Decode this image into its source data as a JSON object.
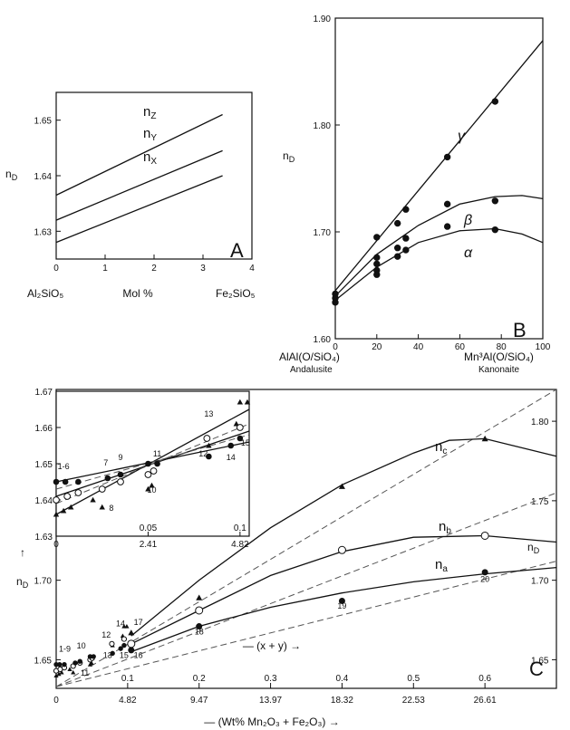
{
  "chart_data": [
    {
      "id": "A",
      "type": "line",
      "panel_label": "A",
      "ylabel": "n",
      "ylabel_sub": "D",
      "xlabel": "Mol %",
      "xlabel_left": "Al₂SiO₅",
      "xlabel_right": "Fe₂SiO₅",
      "xlim": [
        0,
        4
      ],
      "ylim": [
        1.625,
        1.655
      ],
      "xticks": [
        0,
        1,
        2,
        3,
        4
      ],
      "yticks": [
        1.63,
        1.64,
        1.65
      ],
      "ytick_labels": [
        "1.63",
        "1.64",
        "1.65"
      ],
      "series": [
        {
          "name": "nZ",
          "label": "n",
          "sub": "Z",
          "x": [
            0,
            3.4
          ],
          "y": [
            1.6365,
            1.651
          ]
        },
        {
          "name": "nY",
          "label": "n",
          "sub": "Y",
          "x": [
            0,
            3.4
          ],
          "y": [
            1.632,
            1.6445
          ]
        },
        {
          "name": "nX",
          "label": "n",
          "sub": "X",
          "x": [
            0,
            3.4
          ],
          "y": [
            1.628,
            1.64
          ]
        }
      ]
    },
    {
      "id": "B",
      "type": "line",
      "panel_label": "B",
      "ylabel": "n",
      "ylabel_sub": "D",
      "xlabel_left": "AlAl(O/SiO₄)",
      "xlabel_left_sub": "Andalusite",
      "xlabel_right": "Mn³Al(O/SiO₄)",
      "xlabel_right_sub": "Kanonaite",
      "xlim": [
        0,
        100
      ],
      "ylim": [
        1.6,
        1.9
      ],
      "xticks": [
        0,
        20,
        40,
        60,
        80,
        100
      ],
      "yticks": [
        1.6,
        1.7,
        1.8,
        1.9
      ],
      "ytick_labels": [
        "1.60",
        "1.70",
        "1.80",
        "1.90"
      ],
      "series": [
        {
          "name": "γ",
          "x": [
            0,
            100
          ],
          "y": [
            1.645,
            1.879
          ],
          "points": [
            [
              0,
              1.642
            ],
            [
              20,
              1.695
            ],
            [
              30,
              1.708
            ],
            [
              34,
              1.721
            ],
            [
              54,
              1.77
            ],
            [
              77,
              1.822
            ]
          ]
        },
        {
          "name": "β",
          "x": [
            0,
            20,
            40,
            60,
            77,
            90,
            100
          ],
          "y": [
            1.64,
            1.679,
            1.706,
            1.726,
            1.733,
            1.734,
            1.731
          ],
          "points": [
            [
              0,
              1.638
            ],
            [
              20,
              1.676
            ],
            [
              20,
              1.67
            ],
            [
              30,
              1.685
            ],
            [
              34,
              1.694
            ],
            [
              54,
              1.726
            ],
            [
              77,
              1.729
            ]
          ]
        },
        {
          "name": "α",
          "x": [
            0,
            20,
            40,
            60,
            77,
            90,
            100
          ],
          "y": [
            1.636,
            1.667,
            1.69,
            1.701,
            1.703,
            1.698,
            1.69
          ],
          "points": [
            [
              0,
              1.634
            ],
            [
              20,
              1.664
            ],
            [
              20,
              1.66
            ],
            [
              30,
              1.677
            ],
            [
              34,
              1.683
            ],
            [
              54,
              1.705
            ],
            [
              77,
              1.702
            ]
          ]
        }
      ]
    },
    {
      "id": "C",
      "type": "scatter",
      "panel_label": "C",
      "ylabel": "n",
      "ylabel_sub": "D",
      "xlabel": "(Wt% Mn₂O₃ + Fe₂O₃)",
      "xlabel_top": "(x + y)",
      "xlim": [
        0,
        0.7
      ],
      "ylim": [
        1.632,
        1.82
      ],
      "xticks": [
        0.1,
        0.2,
        0.3,
        0.4,
        0.5,
        0.6
      ],
      "xtick_labels": [
        "0.1",
        "0.2",
        "0.3",
        "0.4",
        "0.5",
        "0.6"
      ],
      "xticks_wt": [
        0,
        0.1,
        0.2,
        0.3,
        0.4,
        0.5,
        0.6
      ],
      "xtick_labels_wt": [
        "0",
        "4.82",
        "9.47",
        "13.97",
        "18.32",
        "22.53",
        "26.61"
      ],
      "yticks_left": [
        1.65,
        1.7
      ],
      "ytick_labels_left": [
        "1.65",
        "1.70"
      ],
      "yticks_right": [
        1.65,
        1.7,
        1.75,
        1.8
      ],
      "ytick_labels_right": [
        "1.65",
        "1.70",
        "1.75",
        "1.80"
      ],
      "series": [
        {
          "name": "nc",
          "label": "n",
          "sub": "c",
          "marker": "triangle",
          "curve_x": [
            0.105,
            0.2,
            0.3,
            0.4,
            0.5,
            0.55,
            0.6,
            0.7
          ],
          "curve_y": [
            1.665,
            1.7,
            1.733,
            1.76,
            1.78,
            1.788,
            1.789,
            1.778
          ],
          "points": [
            [
              0.105,
              1.667
            ],
            [
              0.2,
              1.689
            ],
            [
              0.4,
              1.759
            ],
            [
              0.6,
              1.789
            ]
          ]
        },
        {
          "name": "nb",
          "label": "n",
          "sub": "b",
          "marker": "circle",
          "curve_x": [
            0.105,
            0.2,
            0.3,
            0.4,
            0.5,
            0.6,
            0.7
          ],
          "curve_y": [
            1.66,
            1.681,
            1.703,
            1.718,
            1.727,
            1.728,
            1.724
          ],
          "points": [
            [
              0.105,
              1.66
            ],
            [
              0.2,
              1.681
            ],
            [
              0.4,
              1.719
            ],
            [
              0.6,
              1.728
            ]
          ]
        },
        {
          "name": "na",
          "label": "n",
          "sub": "a",
          "marker": "dot",
          "curve_x": [
            0.105,
            0.2,
            0.3,
            0.4,
            0.5,
            0.6,
            0.7
          ],
          "curve_y": [
            1.655,
            1.671,
            1.683,
            1.692,
            1.699,
            1.704,
            1.708
          ],
          "points": [
            [
              0.105,
              1.656
            ],
            [
              0.2,
              1.671
            ],
            [
              0.4,
              1.687
            ],
            [
              0.6,
              1.705
            ]
          ]
        }
      ],
      "dashed_lines": [
        {
          "x": [
            0,
            0.7
          ],
          "y": [
            1.633,
            1.82
          ]
        },
        {
          "x": [
            0,
            0.7
          ],
          "y": [
            1.633,
            1.755
          ]
        },
        {
          "x": [
            0,
            0.7
          ],
          "y": [
            1.633,
            1.712
          ]
        }
      ],
      "point_labels": [
        {
          "text": "20",
          "x": 0.6,
          "y": 1.699
        },
        {
          "text": "19",
          "x": 0.4,
          "y": 1.682
        },
        {
          "text": "18",
          "x": 0.2,
          "y": 1.666
        },
        {
          "text": "17",
          "x": 0.115,
          "y": 1.672
        },
        {
          "text": "14",
          "x": 0.09,
          "y": 1.671
        },
        {
          "text": "12",
          "x": 0.07,
          "y": 1.664
        },
        {
          "text": "13",
          "x": 0.072,
          "y": 1.651
        },
        {
          "text": "15",
          "x": 0.095,
          "y": 1.651
        },
        {
          "text": "16",
          "x": 0.115,
          "y": 1.651
        },
        {
          "text": "10",
          "x": 0.035,
          "y": 1.657
        },
        {
          "text": "1-9",
          "x": 0.012,
          "y": 1.655
        },
        {
          "text": "11",
          "x": 0.04,
          "y": 1.64
        }
      ],
      "inset": {
        "xlim": [
          0,
          0.105
        ],
        "ylim": [
          1.63,
          1.67
        ],
        "xticks_top": [
          0.05,
          0.1
        ],
        "xtick_labels_top": [
          "0.05",
          "0.1"
        ],
        "xticks_bottom": [
          0,
          0.05,
          0.1
        ],
        "xtick_labels_bottom": [
          "0",
          "2.41",
          "4.82"
        ],
        "yticks": [
          1.63,
          1.64,
          1.65,
          1.66,
          1.67
        ],
        "ytick_labels": [
          "1.63",
          "1.64",
          "1.65",
          "1.66",
          "1.67"
        ],
        "lines": [
          {
            "x": [
              0,
              0.105
            ],
            "y": [
              1.645,
              1.656
            ],
            "style": "solid"
          },
          {
            "x": [
              0,
              0.105
            ],
            "y": [
              1.641,
              1.659
            ],
            "style": "solid"
          },
          {
            "x": [
              0,
              0.105
            ],
            "y": [
              1.636,
              1.665
            ],
            "style": "solid"
          },
          {
            "x": [
              0,
              0.105
            ],
            "y": [
              1.643,
              1.658
            ],
            "style": "dash"
          },
          {
            "x": [
              0,
              0.105
            ],
            "y": [
              1.639,
              1.661
            ],
            "style": "dash"
          }
        ],
        "triangles": [
          [
            0,
            1.636
          ],
          [
            0.004,
            1.637
          ],
          [
            0.008,
            1.638
          ],
          [
            0.02,
            1.64
          ],
          [
            0.025,
            1.638
          ],
          [
            0.05,
            1.643
          ],
          [
            0.052,
            1.644
          ],
          [
            0.083,
            1.655
          ],
          [
            0.1,
            1.667
          ],
          [
            0.104,
            1.667
          ],
          [
            0.098,
            1.661
          ]
        ],
        "open_circles": [
          [
            0,
            1.64
          ],
          [
            0.006,
            1.641
          ],
          [
            0.012,
            1.642
          ],
          [
            0.025,
            1.643
          ],
          [
            0.035,
            1.645
          ],
          [
            0.05,
            1.647
          ],
          [
            0.053,
            1.648
          ],
          [
            0.082,
            1.657
          ],
          [
            0.1,
            1.66
          ]
        ],
        "dots": [
          [
            0,
            1.645
          ],
          [
            0.005,
            1.645
          ],
          [
            0.012,
            1.645
          ],
          [
            0.028,
            1.646
          ],
          [
            0.035,
            1.647
          ],
          [
            0.05,
            1.65
          ],
          [
            0.055,
            1.65
          ],
          [
            0.083,
            1.652
          ],
          [
            0.095,
            1.655
          ],
          [
            0.1,
            1.657
          ]
        ],
        "point_labels": [
          {
            "text": "1-6",
            "x": 0.004,
            "y": 1.6485
          },
          {
            "text": "7",
            "x": 0.027,
            "y": 1.6495
          },
          {
            "text": "9",
            "x": 0.035,
            "y": 1.651
          },
          {
            "text": "8",
            "x": 0.03,
            "y": 1.637
          },
          {
            "text": "11",
            "x": 0.055,
            "y": 1.652
          },
          {
            "text": "10",
            "x": 0.052,
            "y": 1.642
          },
          {
            "text": "13",
            "x": 0.083,
            "y": 1.663
          },
          {
            "text": "12",
            "x": 0.08,
            "y": 1.652
          },
          {
            "text": "14",
            "x": 0.095,
            "y": 1.651
          },
          {
            "text": "15",
            "x": 0.103,
            "y": 1.655
          }
        ]
      }
    }
  ]
}
